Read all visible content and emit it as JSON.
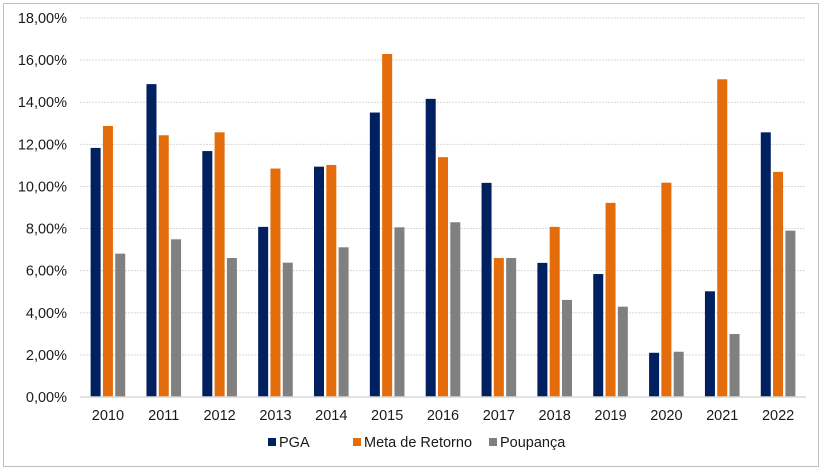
{
  "chart_data": {
    "type": "bar",
    "title": "",
    "xlabel": "",
    "ylabel": "",
    "ylim": [
      0,
      18
    ],
    "yticks": [
      0,
      2,
      4,
      6,
      8,
      10,
      12,
      14,
      16,
      18
    ],
    "ytick_labels": [
      "0,00%",
      "2,00%",
      "4,00%",
      "6,00%",
      "8,00%",
      "10,00%",
      "12,00%",
      "14,00%",
      "16,00%",
      "18,00%"
    ],
    "grid": true,
    "legend_position": "bottom",
    "categories": [
      "2010",
      "2011",
      "2012",
      "2013",
      "2014",
      "2015",
      "2016",
      "2017",
      "2018",
      "2019",
      "2020",
      "2021",
      "2022"
    ],
    "series": [
      {
        "name": "PGA",
        "color": "#002060",
        "values": [
          11.83,
          14.86,
          11.68,
          8.08,
          10.94,
          13.51,
          14.16,
          10.17,
          6.37,
          5.84,
          2.1,
          5.02,
          12.57
        ]
      },
      {
        "name": "Meta de Retorno",
        "color": "#E46C0A",
        "values": [
          12.87,
          12.43,
          12.57,
          10.85,
          11.02,
          16.29,
          11.39,
          6.6,
          8.08,
          9.22,
          10.18,
          15.09,
          10.69
        ]
      },
      {
        "name": "Poupança",
        "color": "#808080",
        "values": [
          6.81,
          7.49,
          6.6,
          6.38,
          7.11,
          8.06,
          8.3,
          6.6,
          4.61,
          4.29,
          2.15,
          2.99,
          7.9
        ]
      }
    ]
  }
}
